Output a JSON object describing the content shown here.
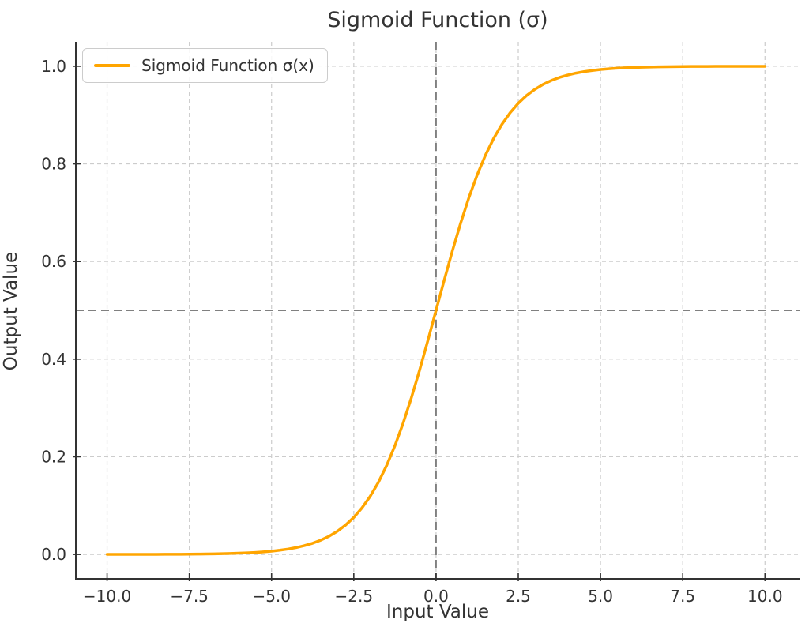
{
  "figure": {
    "title": "Sigmoid Function (σ)",
    "background": "#ffffff"
  },
  "legend": {
    "label": "Sigmoid Function σ(x)",
    "position": "upper left"
  },
  "colors": {
    "curve": "#FFA500",
    "reference_line": "#808080",
    "grid": "#cccccc",
    "spine": "#333333",
    "text": "#333333"
  },
  "chart_data": {
    "type": "line",
    "title": "Sigmoid Function (σ)",
    "xlabel": "Input Value",
    "ylabel": "Output Value",
    "xlim": [
      -10.95,
      11.05
    ],
    "ylim": [
      -0.05,
      1.05
    ],
    "xticks": [
      -10,
      -7.5,
      -5,
      -2.5,
      0,
      2.5,
      5,
      7.5,
      10
    ],
    "xtick_labels": [
      "−10.0",
      "−7.5",
      "−5.0",
      "−2.5",
      "0.0",
      "2.5",
      "5.0",
      "7.5",
      "10.0"
    ],
    "yticks": [
      0,
      0.2,
      0.4,
      0.6,
      0.8,
      1.0
    ],
    "ytick_labels": [
      "0.0",
      "0.2",
      "0.4",
      "0.6",
      "0.8",
      "1.0"
    ],
    "grid": true,
    "grid_style": "dashed",
    "legend_position": "upper left",
    "series": [
      {
        "name": "Sigmoid Function σ(x)",
        "color": "#FFA500",
        "formula": "y = 1 / (1 + e^(-x))",
        "x": [
          -10,
          -9.75,
          -9.5,
          -9.25,
          -9,
          -8.75,
          -8.5,
          -8.25,
          -8,
          -7.75,
          -7.5,
          -7.25,
          -7,
          -6.75,
          -6.5,
          -6.25,
          -6,
          -5.75,
          -5.5,
          -5.25,
          -5,
          -4.75,
          -4.5,
          -4.25,
          -4,
          -3.75,
          -3.5,
          -3.25,
          -3,
          -2.75,
          -2.5,
          -2.25,
          -2,
          -1.75,
          -1.5,
          -1.25,
          -1,
          -0.75,
          -0.5,
          -0.25,
          0,
          0.25,
          0.5,
          0.75,
          1,
          1.25,
          1.5,
          1.75,
          2,
          2.25,
          2.5,
          2.75,
          3,
          3.25,
          3.5,
          3.75,
          4,
          4.25,
          4.5,
          4.75,
          5,
          5.25,
          5.5,
          5.75,
          6,
          6.25,
          6.5,
          6.75,
          7,
          7.25,
          7.5,
          7.75,
          8,
          8.25,
          8.5,
          8.75,
          9,
          9.25,
          9.5,
          9.75,
          10
        ],
        "y": [
          5e-05,
          6e-05,
          7e-05,
          0.0001,
          0.00012,
          0.00016,
          0.0002,
          0.00026,
          0.00034,
          0.00043,
          0.00055,
          0.00071,
          0.00091,
          0.00117,
          0.0015,
          0.00193,
          0.00247,
          0.00317,
          0.00407,
          0.00522,
          0.00669,
          0.00858,
          0.01099,
          0.01406,
          0.01799,
          0.02297,
          0.02931,
          0.03732,
          0.04743,
          0.06009,
          0.07586,
          0.09535,
          0.1192,
          0.14805,
          0.18243,
          0.2227,
          0.26894,
          0.32082,
          0.37754,
          0.43782,
          0.5,
          0.56218,
          0.62246,
          0.67918,
          0.73106,
          0.7773,
          0.81757,
          0.85195,
          0.8808,
          0.90465,
          0.92414,
          0.93991,
          0.95257,
          0.96268,
          0.97069,
          0.97703,
          0.98201,
          0.98594,
          0.98901,
          0.99142,
          0.99331,
          0.99478,
          0.99593,
          0.99683,
          0.99753,
          0.99807,
          0.9985,
          0.99883,
          0.99909,
          0.99929,
          0.99945,
          0.99957,
          0.99966,
          0.99974,
          0.9998,
          0.99984,
          0.99988,
          0.9999,
          0.99993,
          0.99994,
          0.99995
        ]
      }
    ],
    "reference_lines": [
      {
        "orientation": "vertical",
        "x": 0,
        "style": "dashed",
        "color": "#808080"
      },
      {
        "orientation": "horizontal",
        "y": 0.5,
        "style": "dashed",
        "color": "#808080"
      }
    ]
  }
}
